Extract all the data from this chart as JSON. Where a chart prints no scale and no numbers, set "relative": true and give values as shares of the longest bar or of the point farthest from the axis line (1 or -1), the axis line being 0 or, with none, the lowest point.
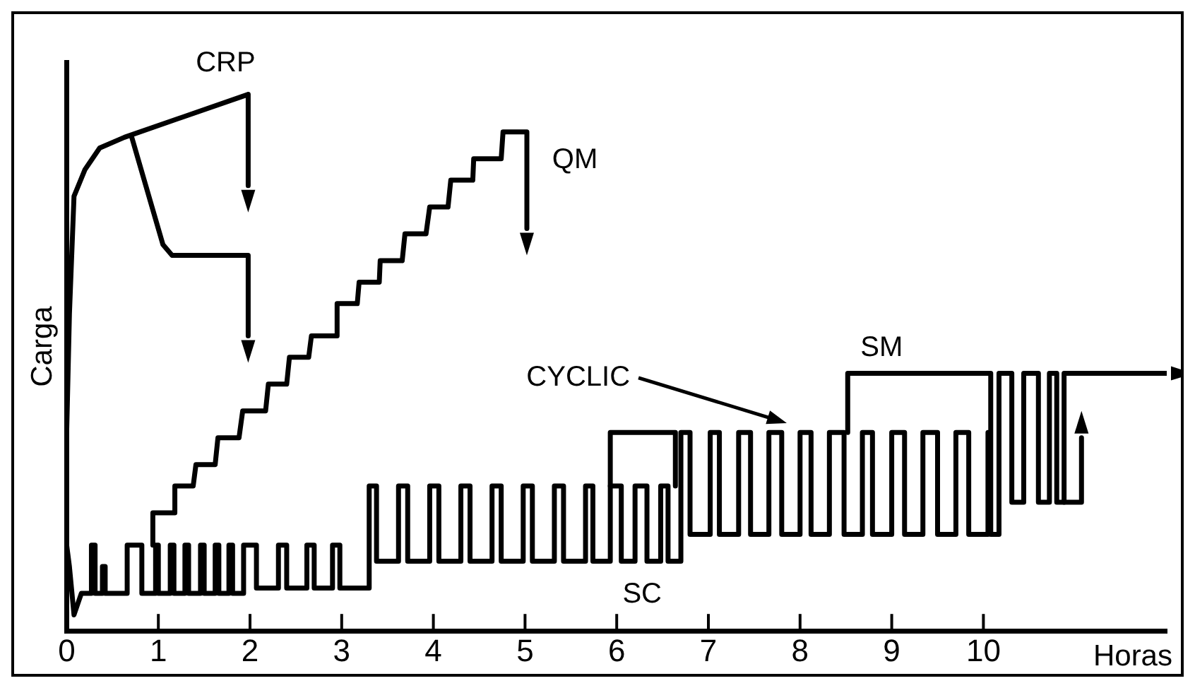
{
  "chart_data": {
    "type": "line",
    "relative": true,
    "xlabel": "Horas",
    "ylabel": "Carga",
    "xlim": [
      0,
      12
    ],
    "xticks": [
      0,
      1,
      2,
      3,
      4,
      5,
      6,
      7,
      8,
      9,
      10
    ],
    "grid": false,
    "legend": false,
    "line_style": "solid",
    "annotations": [
      {
        "text": "CRP",
        "x": 1.98,
        "y": 1.0
      },
      {
        "text": "QM",
        "x": 5.02,
        "y": 0.93
      },
      {
        "text": "SC",
        "x": 6.0,
        "y": 0.13
      },
      {
        "text": "SM",
        "x": 8.52,
        "y": 0.48
      },
      "CYCLIC"
    ],
    "series": [
      {
        "color": "#000000",
        "x": [
          0,
          0,
          0.03,
          0.08,
          0.2,
          0.36,
          0.63,
          1.98,
          1.98
        ],
        "values": [
          0,
          0.37,
          0.59,
          0.81,
          0.86,
          0.9,
          0.92,
          1.0,
          0.83
        ]
      },
      {
        "color": "#000000",
        "x": [
          0.71,
          1.05,
          1.15,
          1.98,
          1.98
        ],
        "values": [
          0.92,
          0.72,
          0.7,
          0.7,
          0.55
        ]
      },
      {
        "color": "#000000",
        "x": [
          0.94,
          0.94,
          1.18,
          1.18,
          1.38,
          1.41,
          1.62,
          1.65,
          1.88,
          1.92,
          2.17,
          2.2,
          2.4,
          2.43,
          2.64,
          2.67,
          2.94,
          2.95,
          3.17,
          3.19,
          3.41,
          3.42,
          3.66,
          3.69,
          3.92,
          3.96,
          4.16,
          4.19,
          4.43,
          4.44,
          4.74,
          4.76,
          5.02,
          5.02
        ],
        "values": [
          0.16,
          0.22,
          0.22,
          0.27,
          0.27,
          0.31,
          0.31,
          0.36,
          0.36,
          0.41,
          0.41,
          0.46,
          0.46,
          0.51,
          0.51,
          0.55,
          0.55,
          0.61,
          0.61,
          0.65,
          0.65,
          0.69,
          0.69,
          0.74,
          0.74,
          0.79,
          0.79,
          0.84,
          0.84,
          0.88,
          0.88,
          0.93,
          0.93,
          0.75
        ]
      },
      {
        "color": "#000000",
        "x": [
          0,
          0.03,
          0.08,
          0.16,
          0.27,
          0.27,
          0.31,
          0.31,
          0.39,
          0.39,
          0.42,
          0.42,
          0.66,
          0.66,
          0.82,
          0.82,
          0.97,
          0.97,
          1.0,
          1.0,
          1.13,
          1.13,
          1.17,
          1.17,
          1.29,
          1.29,
          1.33,
          1.33,
          1.46,
          1.46,
          1.5,
          1.5,
          1.62,
          1.62,
          1.66,
          1.66,
          1.77,
          1.77,
          1.81,
          1.81,
          1.93,
          1.93,
          2.07,
          2.07,
          2.31,
          2.31,
          2.4,
          2.4,
          2.62,
          2.62,
          2.7,
          2.7,
          2.9,
          2.9,
          2.98,
          2.98,
          3.3,
          3.3,
          3.38,
          3.38,
          3.62,
          3.62,
          3.72,
          3.72,
          3.96,
          3.96,
          4.06,
          4.06,
          4.3,
          4.3,
          4.4,
          4.4,
          4.64,
          4.64,
          4.74,
          4.74,
          4.98,
          4.98,
          5.08,
          5.08,
          5.32,
          5.32,
          5.42,
          5.42,
          5.66,
          5.66,
          5.74,
          5.74,
          5.93,
          5.93,
          6.05,
          6.05,
          6.2,
          6.2,
          6.33,
          6.33,
          6.48,
          6.48,
          6.56,
          6.56,
          6.7,
          6.7,
          6.8,
          6.8,
          7.02,
          7.02,
          7.12,
          7.12,
          7.33,
          7.33,
          7.46,
          7.46,
          7.66,
          7.66,
          7.8,
          7.8,
          8.0,
          8.0,
          8.12,
          8.12,
          8.32,
          8.32,
          8.48,
          8.48,
          8.68,
          8.68,
          8.79,
          8.79,
          9.0,
          9.0,
          9.14,
          9.14,
          9.34,
          9.34,
          9.5,
          9.5,
          9.7,
          9.7,
          9.84,
          9.84,
          10.05,
          10.05
        ],
        "values": [
          0.16,
          0.12,
          0.03,
          0.07,
          0.07,
          0.16,
          0.16,
          0.07,
          0.07,
          0.12,
          0.12,
          0.07,
          0.07,
          0.16,
          0.16,
          0.07,
          0.07,
          0.16,
          0.16,
          0.07,
          0.07,
          0.16,
          0.16,
          0.07,
          0.07,
          0.16,
          0.16,
          0.07,
          0.07,
          0.16,
          0.16,
          0.07,
          0.07,
          0.16,
          0.16,
          0.07,
          0.07,
          0.16,
          0.16,
          0.07,
          0.07,
          0.16,
          0.16,
          0.08,
          0.08,
          0.16,
          0.16,
          0.08,
          0.08,
          0.16,
          0.16,
          0.08,
          0.08,
          0.16,
          0.16,
          0.08,
          0.08,
          0.27,
          0.27,
          0.13,
          0.13,
          0.27,
          0.27,
          0.13,
          0.13,
          0.27,
          0.27,
          0.13,
          0.13,
          0.27,
          0.27,
          0.13,
          0.13,
          0.27,
          0.27,
          0.13,
          0.13,
          0.27,
          0.27,
          0.13,
          0.13,
          0.27,
          0.27,
          0.13,
          0.13,
          0.27,
          0.27,
          0.13,
          0.13,
          0.27,
          0.27,
          0.13,
          0.13,
          0.27,
          0.27,
          0.13,
          0.13,
          0.27,
          0.27,
          0.13,
          0.13,
          0.37,
          0.37,
          0.18,
          0.18,
          0.37,
          0.37,
          0.18,
          0.18,
          0.37,
          0.37,
          0.18,
          0.18,
          0.37,
          0.37,
          0.18,
          0.18,
          0.37,
          0.37,
          0.18,
          0.18,
          0.37,
          0.37,
          0.18,
          0.18,
          0.37,
          0.37,
          0.18,
          0.18,
          0.37,
          0.37,
          0.18,
          0.18,
          0.37,
          0.37,
          0.18,
          0.18,
          0.37,
          0.37,
          0.18,
          0.18,
          0.37
        ]
      },
      {
        "color": "#000000",
        "x": [
          5.93,
          5.93,
          6.64,
          6.64,
          7.5,
          8.52,
          8.52,
          10.08,
          10.08,
          10.17,
          10.17,
          10.31,
          10.31,
          10.44,
          10.44,
          10.6,
          10.6,
          10.72,
          10.72,
          10.8,
          10.8,
          10.88,
          10.88,
          12.0
        ],
        "values": [
          0.27,
          0.37,
          0.37,
          0.27,
          null,
          0.37,
          0.48,
          0.48,
          0.18,
          0.18,
          0.48,
          0.48,
          0.24,
          0.24,
          0.48,
          0.48,
          0.24,
          0.24,
          0.48,
          0.48,
          0.24,
          0.24,
          0.48,
          0.48
        ]
      },
      {
        "color": "#000000",
        "x": [
          10.88,
          11.07,
          11.07
        ],
        "values": [
          0.24,
          0.24,
          0.36
        ]
      }
    ]
  }
}
